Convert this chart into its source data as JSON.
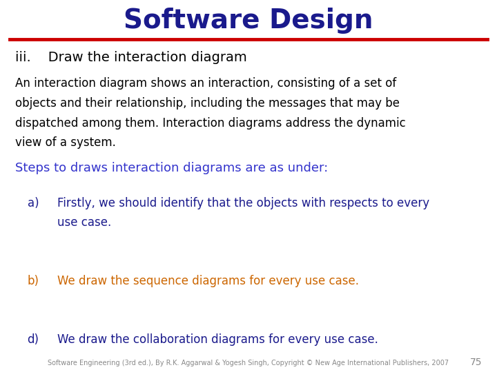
{
  "title": "Software Design",
  "title_color": "#1a1a8c",
  "title_fontsize": 28,
  "title_fontweight": "bold",
  "red_line_y": 0.895,
  "red_line_color": "#cc0000",
  "section_heading": "iii.    Draw the interaction diagram",
  "section_heading_color": "#000000",
  "section_heading_fontsize": 14,
  "body_lines": [
    "An interaction diagram shows an interaction, consisting of a set of",
    "objects and their relationship, including the messages that may be",
    "dispatched among them. Interaction diagrams address the dynamic",
    "view of a system."
  ],
  "body_color": "#000000",
  "body_fontsize": 12,
  "steps_heading": "Steps to draws interaction diagrams are as under:",
  "steps_heading_color": "#3333cc",
  "steps_heading_fontsize": 13,
  "items": [
    {
      "label": "a)",
      "lines": [
        "Firstly, we should identify that the objects with respects to every",
        "use case."
      ],
      "label_color": "#1a1a8c",
      "text_color": "#1a1a8c",
      "fontsize": 12
    },
    {
      "label": "b)",
      "lines": [
        "We draw the sequence diagrams for every use case."
      ],
      "label_color": "#cc6600",
      "text_color": "#cc6600",
      "fontsize": 12
    },
    {
      "label": "d)",
      "lines": [
        "We draw the collaboration diagrams for every use case."
      ],
      "label_color": "#1a1a8c",
      "text_color": "#1a1a8c",
      "fontsize": 12
    }
  ],
  "footer_text": "Software Engineering (3rd ed.), By R.K. Aggarwal & Yogesh Singh, Copyright © New Age International Publishers, 2007",
  "footer_page": "75",
  "footer_color": "#888888",
  "footer_fontsize": 7,
  "bg_color": "#ffffff"
}
